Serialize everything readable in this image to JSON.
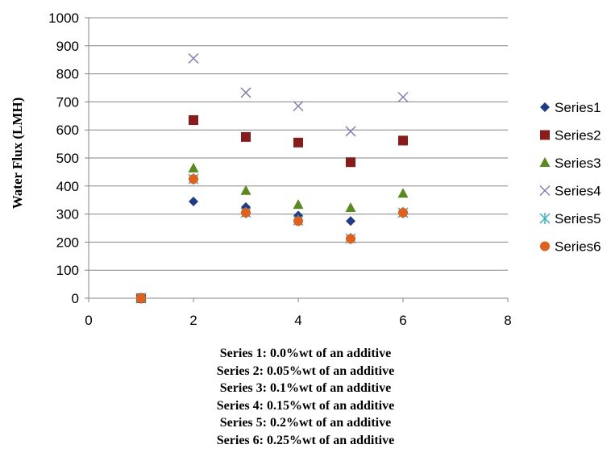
{
  "chart_data": {
    "type": "scatter",
    "title": "",
    "xlabel": "",
    "ylabel": "Water Flux (LMH)",
    "xlim": [
      0,
      8
    ],
    "ylim": [
      0,
      1000
    ],
    "x_ticks": [
      "0",
      "2",
      "4",
      "6",
      "8"
    ],
    "y_ticks": [
      "0",
      "100",
      "200",
      "300",
      "400",
      "500",
      "600",
      "700",
      "800",
      "900",
      "1000"
    ],
    "grid": "horizontal",
    "legend_position": "right",
    "series": [
      {
        "name": "Series1",
        "marker": "diamond",
        "color": "#1f3b8c",
        "x": [
          1,
          2,
          3,
          4,
          5,
          6
        ],
        "y": [
          0,
          345,
          325,
          295,
          275,
          308
        ]
      },
      {
        "name": "Series2",
        "marker": "square",
        "color": "#8b1a1a",
        "x": [
          1,
          2,
          3,
          4,
          5,
          6
        ],
        "y": [
          0,
          635,
          575,
          555,
          485,
          562
        ]
      },
      {
        "name": "Series3",
        "marker": "triangle",
        "color": "#5a8a1c",
        "x": [
          1,
          2,
          3,
          4,
          5,
          6
        ],
        "y": [
          0,
          463,
          383,
          333,
          322,
          373
        ]
      },
      {
        "name": "Series4",
        "marker": "x",
        "color": "#8080c0",
        "x": [
          1,
          2,
          3,
          4,
          5,
          6
        ],
        "y": [
          0,
          855,
          733,
          685,
          595,
          717
        ]
      },
      {
        "name": "Series5",
        "marker": "star",
        "color": "#33b3c6",
        "x": [
          1,
          2,
          3,
          4,
          5,
          6
        ],
        "y": [
          0,
          425,
          305,
          277,
          213,
          305
        ]
      },
      {
        "name": "Series6",
        "marker": "circle",
        "color": "#e0601c",
        "x": [
          1,
          2,
          3,
          4,
          5,
          6
        ],
        "y": [
          0,
          425,
          305,
          275,
          212,
          305
        ]
      }
    ]
  },
  "caption": {
    "lines": [
      "Series 1: 0.0%wt of an additive",
      "Series 2: 0.05%wt of an additive",
      "Series 3: 0.1%wt of an additive",
      "Series 4: 0.15%wt of an additive",
      "Series 5: 0.2%wt of an additive",
      "Series 6: 0.25%wt of an additive"
    ]
  }
}
